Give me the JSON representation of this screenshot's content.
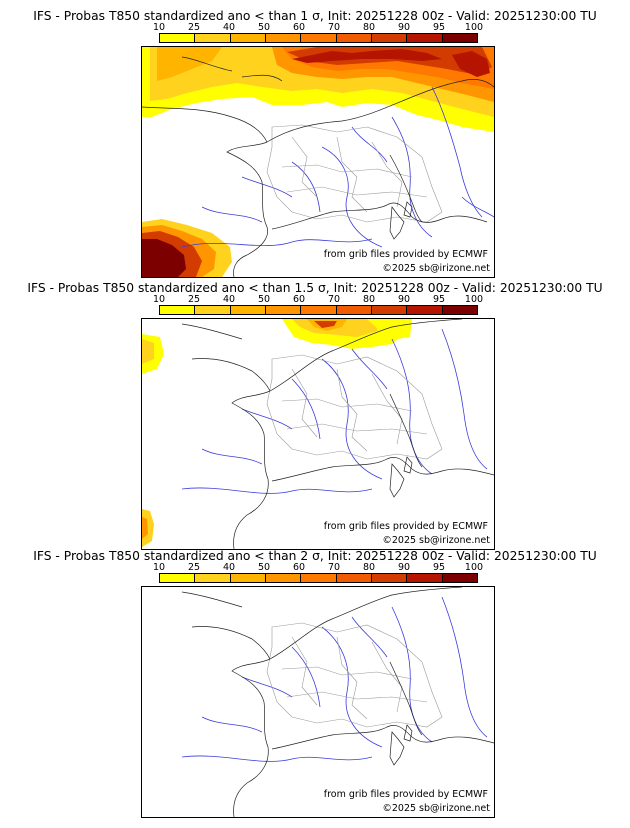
{
  "colorbar": {
    "ticks": [
      "10",
      "25",
      "40",
      "50",
      "60",
      "70",
      "80",
      "90",
      "95",
      "100"
    ],
    "colors": [
      "#ffff00",
      "#ffd21e",
      "#ffb400",
      "#ff9600",
      "#ff7800",
      "#f05a00",
      "#d23c00",
      "#b41400",
      "#7c0000"
    ]
  },
  "panels": [
    {
      "title": "IFS - Probas T850  standardized ano < than 1 σ, Init: 20251228 00z - Valid: 20251230:00 TU",
      "credit_source": "from grib files provided by ECMWF",
      "credit_copyright": "©2025 sb@irizone.net"
    },
    {
      "title": "IFS - Probas T850  standardized ano < than 1.5 σ, Init: 20251228 00z - Valid: 20251230:00 TU",
      "credit_source": "from grib files provided by ECMWF",
      "credit_copyright": "©2025 sb@irizone.net"
    },
    {
      "title": "IFS - Probas T850  standardized ano < than 2 σ, Init: 20251228 00z - Valid: 20251230:00 TU",
      "credit_source": "from grib files provided by ECMWF",
      "credit_copyright": "©2025 sb@irizone.net"
    }
  ]
}
